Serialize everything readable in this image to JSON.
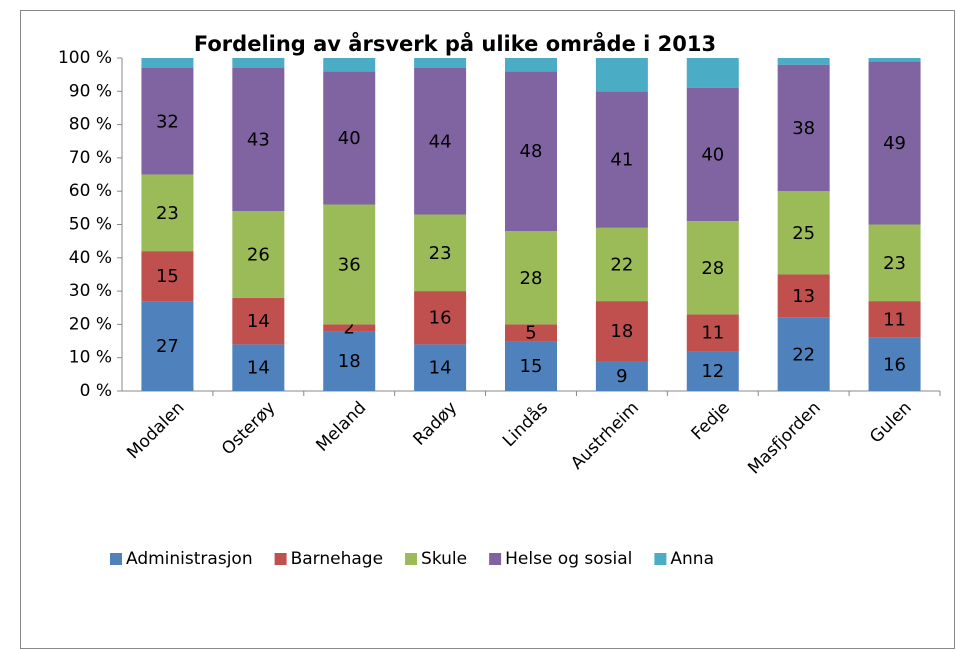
{
  "chart_data": {
    "type": "stacked-bar",
    "title": "Fordeling av årsverk på ulike område i 2013",
    "categories": [
      "Modalen",
      "Osterøy",
      "Meland",
      "Radøy",
      "Lindås",
      "Austrheim",
      "Fedje",
      "Masfjorden",
      "Gulen"
    ],
    "series": [
      {
        "name": "Administrasjon",
        "color": "#4f81bd",
        "values": [
          27,
          14,
          18,
          14,
          15,
          9,
          12,
          22,
          16
        ],
        "show_labels": true
      },
      {
        "name": "Barnehage",
        "color": "#c0504d",
        "values": [
          15,
          14,
          2,
          16,
          5,
          18,
          11,
          13,
          11
        ],
        "show_labels": true
      },
      {
        "name": "Skule",
        "color": "#9bbb59",
        "values": [
          23,
          26,
          36,
          23,
          28,
          22,
          28,
          25,
          23
        ],
        "show_labels": true
      },
      {
        "name": "Helse og sosial",
        "color": "#8064a2",
        "values": [
          32,
          43,
          40,
          44,
          48,
          41,
          40,
          38,
          49
        ],
        "show_labels": true
      },
      {
        "name": "Anna",
        "color": "#4bacc6",
        "values": [
          3,
          3,
          4,
          3,
          4,
          10,
          9,
          2,
          1
        ],
        "show_labels": false
      }
    ],
    "ylim": [
      0,
      100
    ],
    "yticks": [
      {
        "value": 0,
        "label": "0 %"
      },
      {
        "value": 10,
        "label": "10 %"
      },
      {
        "value": 20,
        "label": "20 %"
      },
      {
        "value": 30,
        "label": "30 %"
      },
      {
        "value": 40,
        "label": "40 %"
      },
      {
        "value": 50,
        "label": "50 %"
      },
      {
        "value": 60,
        "label": "60 %"
      },
      {
        "value": 70,
        "label": "70 %"
      },
      {
        "value": 80,
        "label": "80 %"
      },
      {
        "value": 90,
        "label": "90 %"
      },
      {
        "value": 100,
        "label": "100 %"
      }
    ],
    "grid": false,
    "legend": "bottom"
  }
}
